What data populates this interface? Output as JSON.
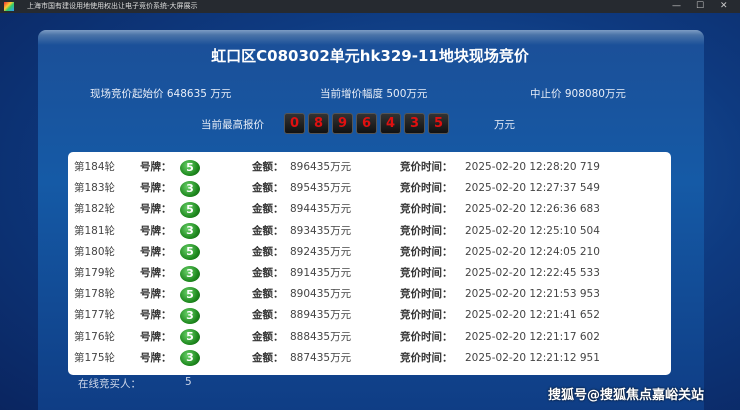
{
  "window": {
    "title": "上海市国有建设用地使用权出让电子竞价系统-大屏展示",
    "minimize": "—",
    "maximize": "☐",
    "close": "✕"
  },
  "header": {
    "title": "虹口区C080302单元hk329-11地块现场竞价",
    "start_price_label": "现场竞价起始价",
    "start_price": "648635 万元",
    "increment_label": "当前增价幅度",
    "increment": "500万元",
    "stop_price_label": "中止价",
    "stop_price": "908080万元",
    "highest_label": "当前最高报价",
    "highest_digits": [
      "0",
      "8",
      "9",
      "6",
      "4",
      "3",
      "5"
    ],
    "highest_unit": "万元"
  },
  "columns": {
    "plate": "号牌：",
    "amount": "金额：",
    "time": "竞价时间："
  },
  "rows": [
    {
      "round": "第184轮",
      "plate": "5",
      "amount": "896435万元",
      "time": "2025-02-20 12:28:20 719"
    },
    {
      "round": "第183轮",
      "plate": "3",
      "amount": "895435万元",
      "time": "2025-02-20 12:27:37 549"
    },
    {
      "round": "第182轮",
      "plate": "5",
      "amount": "894435万元",
      "time": "2025-02-20 12:26:36 683"
    },
    {
      "round": "第181轮",
      "plate": "3",
      "amount": "893435万元",
      "time": "2025-02-20 12:25:10 504"
    },
    {
      "round": "第180轮",
      "plate": "5",
      "amount": "892435万元",
      "time": "2025-02-20 12:24:05 210"
    },
    {
      "round": "第179轮",
      "plate": "3",
      "amount": "891435万元",
      "time": "2025-02-20 12:22:45 533"
    },
    {
      "round": "第178轮",
      "plate": "5",
      "amount": "890435万元",
      "time": "2025-02-20 12:21:53 953"
    },
    {
      "round": "第177轮",
      "plate": "3",
      "amount": "889435万元",
      "time": "2025-02-20 12:21:41 652"
    },
    {
      "round": "第176轮",
      "plate": "5",
      "amount": "888435万元",
      "time": "2025-02-20 12:21:17 602"
    },
    {
      "round": "第175轮",
      "plate": "3",
      "amount": "887435万元",
      "time": "2025-02-20 12:21:12 951"
    }
  ],
  "footer": {
    "online_label": "在线竞买人：",
    "online_count": "5"
  },
  "watermark": "搜狐号@搜狐焦点嘉峪关站"
}
